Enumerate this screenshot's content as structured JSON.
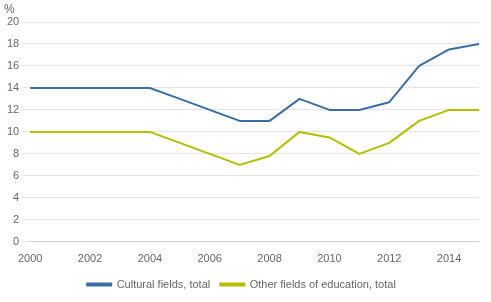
{
  "chart_data": {
    "type": "line",
    "ylabel": "%",
    "x": [
      2000,
      2001,
      2002,
      2003,
      2004,
      2005,
      2006,
      2007,
      2008,
      2009,
      2010,
      2011,
      2012,
      2013,
      2014,
      2015
    ],
    "series": [
      {
        "name": "Cultural fields, total",
        "color": "#3a6ea5",
        "values": [
          14.0,
          14.0,
          14.0,
          14.0,
          14.0,
          13.0,
          12.0,
          11.0,
          11.0,
          13.0,
          12.0,
          12.0,
          12.7,
          16.0,
          17.5,
          18.0
        ]
      },
      {
        "name": "Other fields of education, total",
        "color": "#b5bd00",
        "values": [
          10.0,
          10.0,
          10.0,
          10.0,
          10.0,
          9.0,
          8.0,
          7.0,
          7.8,
          10.0,
          9.5,
          8.0,
          9.0,
          11.0,
          12.0,
          12.0
        ]
      }
    ],
    "xlim": [
      2000,
      2015
    ],
    "xticks": [
      2000,
      2002,
      2004,
      2006,
      2008,
      2010,
      2012,
      2014
    ],
    "ylim": [
      0,
      20
    ],
    "yticks": [
      0,
      2,
      4,
      6,
      8,
      10,
      12,
      14,
      16,
      18,
      20
    ],
    "grid": "y",
    "legend": "bottom"
  }
}
